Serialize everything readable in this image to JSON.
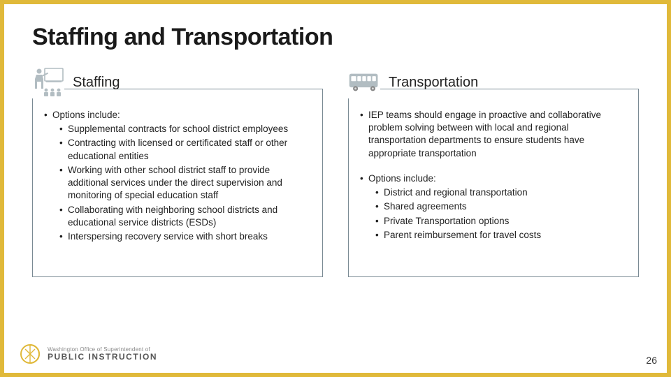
{
  "title": "Staffing and Transportation",
  "page_number": "26",
  "border_color": "#e0b93a",
  "box_border_color": "#7a8a94",
  "icon_color": "#b2bdc2",
  "logo": {
    "top_line": "Washington Office of Superintendent of",
    "bottom_line": "PUBLIC INSTRUCTION",
    "accent_color": "#e0b93a"
  },
  "left": {
    "heading": "Staffing",
    "lead": "Options include:",
    "items": [
      "Supplemental contracts for school district employees",
      "Contracting with licensed or certificated staff or other educational entities",
      "Working with other school district staff to provide additional services under the direct supervision and monitoring of special education staff",
      "Collaborating with neighboring school districts and educational service districts (ESDs)",
      "Interspersing recovery service with short breaks"
    ]
  },
  "right": {
    "heading": "Transportation",
    "para1": "IEP teams should engage in proactive and collaborative problem solving between with local and regional transportation departments to ensure students have appropriate transportation",
    "lead": "Options include:",
    "items": [
      "District and regional transportation",
      "Shared agreements",
      "Private Transportation options",
      "Parent reimbursement for travel costs"
    ]
  }
}
